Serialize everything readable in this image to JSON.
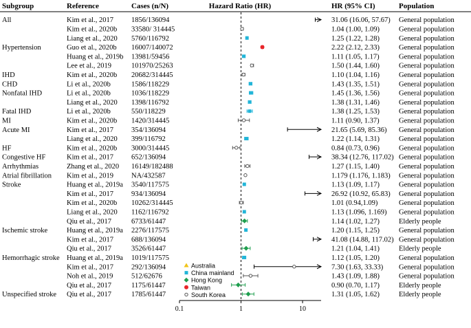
{
  "chart_data": {
    "type": "forest",
    "title": "Hazard Ratio (HR)",
    "headers": {
      "subgroup": "Subgroup",
      "reference": "Reference",
      "cases": "Cases (n/N)",
      "hr": "Hazard Ratio (HR)",
      "ci": "HR (95% CI)",
      "population": "Population"
    },
    "x_scale": "log",
    "xlim": [
      0.1,
      20
    ],
    "x_ticks": [
      {
        "value": 0.1,
        "label": "0.1"
      },
      {
        "value": 1,
        "label": "1"
      },
      {
        "value": 10,
        "label": "10"
      }
    ],
    "reference_line": 1,
    "legend": {
      "placement": "bottom-left-inside",
      "items": [
        {
          "key": "Australia",
          "label": "Australia",
          "color": "#f0c419",
          "shape": "triangle"
        },
        {
          "key": "China mainland",
          "label": "China mainland",
          "color": "#22b5d8",
          "shape": "square"
        },
        {
          "key": "Hong Kong",
          "label": "Hong Kong",
          "color": "#1e9e4e",
          "shape": "diamond"
        },
        {
          "key": "Taiwan",
          "label": "Taiwan",
          "color": "#e8262a",
          "shape": "circle"
        },
        {
          "key": "South Korea",
          "label": "South Korea",
          "color": "#555555",
          "shape": "open-circle"
        }
      ]
    },
    "rows": [
      {
        "subgroup": "All",
        "reference": "Kim et al., 2017",
        "cases": "1856/136094",
        "hr": 31.06,
        "lo": 16.06,
        "hi": 57.67,
        "ci_text": "31.06 (16.06, 57.67)",
        "population": "General population",
        "region": "South Korea",
        "arrow": true
      },
      {
        "subgroup": "",
        "reference": "Kim et al., 2020b",
        "cases": "33580/ 314445",
        "hr": 1.04,
        "lo": 1.0,
        "hi": 1.09,
        "ci_text": "1.04 (1.00, 1.09)",
        "population": "General population",
        "region": "South Korea"
      },
      {
        "subgroup": "",
        "reference": "Liang et al., 2020",
        "cases": "5760/116792",
        "hr": 1.25,
        "lo": 1.22,
        "hi": 1.28,
        "ci_text": "1.25 (1.22, 1.28)",
        "population": "General population",
        "region": "China mainland"
      },
      {
        "subgroup": "Hypertension",
        "reference": "Guo et al., 2020b",
        "cases": "16007/140072",
        "hr": 2.22,
        "lo": 2.12,
        "hi": 2.33,
        "ci_text": "2.22 (2.12, 2.33)",
        "population": "General population",
        "region": "Taiwan"
      },
      {
        "subgroup": "",
        "reference": "Huang et al., 2019b",
        "cases": "13981/59456",
        "hr": 1.11,
        "lo": 1.05,
        "hi": 1.17,
        "ci_text": "1.11 (1.05, 1.17)",
        "population": "General population",
        "region": "China mainland"
      },
      {
        "subgroup": "",
        "reference": "Lee et al., 2019",
        "cases": "101970/25263",
        "hr": 1.5,
        "lo": 1.44,
        "hi": 1.6,
        "ci_text": "1.50 (1.44, 1.60)",
        "population": "General population",
        "region": "South Korea"
      },
      {
        "subgroup": "IHD",
        "reference": "Kim et al., 2020b",
        "cases": "20682/314445",
        "hr": 1.1,
        "lo": 1.04,
        "hi": 1.16,
        "ci_text": "1.10 (1.04, 1.16)",
        "population": "General population",
        "region": "South Korea"
      },
      {
        "subgroup": "CHD",
        "reference": "Li et al., 2020b",
        "cases": "1586/118229",
        "hr": 1.43,
        "lo": 1.35,
        "hi": 1.51,
        "ci_text": "1.43 (1.35, 1.51)",
        "population": "General population",
        "region": "China mainland"
      },
      {
        "subgroup": "Nonfatal IHD",
        "reference": "Li et al., 2020b",
        "cases": "1036/118229",
        "hr": 1.45,
        "lo": 1.36,
        "hi": 1.56,
        "ci_text": "1.45 (1.36, 1.56)",
        "population": "General population",
        "region": "China mainland"
      },
      {
        "subgroup": "",
        "reference": "Liang et al., 2020",
        "cases": "1398/116792",
        "hr": 1.38,
        "lo": 1.31,
        "hi": 1.46,
        "ci_text": "1.38 (1.31, 1.46)",
        "population": "General population",
        "region": "China mainland"
      },
      {
        "subgroup": "Fatal IHD",
        "reference": "Li et al., 2020b",
        "cases": "550/118229",
        "hr": 1.38,
        "lo": 1.25,
        "hi": 1.53,
        "ci_text": "1.38 (1.25, 1.53)",
        "population": "General population",
        "region": "China mainland"
      },
      {
        "subgroup": "MI",
        "reference": "Kim et al., 2020b",
        "cases": "1420/314445",
        "hr": 1.11,
        "lo": 0.9,
        "hi": 1.37,
        "ci_text": "1.11 (0.90, 1.37)",
        "population": "General population",
        "region": "South Korea"
      },
      {
        "subgroup": "Acute MI",
        "reference": "Kim et al., 2017",
        "cases": "354/136094",
        "hr": 21.65,
        "lo": 5.69,
        "hi": 85.36,
        "ci_text": "21.65 (5.69, 85.36)",
        "population": "General population",
        "region": "South Korea",
        "arrow": true
      },
      {
        "subgroup": "",
        "reference": "Liang et al., 2020",
        "cases": "399/116792",
        "hr": 1.22,
        "lo": 1.14,
        "hi": 1.31,
        "ci_text": "1.22 (1.14, 1.31)",
        "population": "General population",
        "region": "China mainland"
      },
      {
        "subgroup": "HF",
        "reference": "Kim et al., 2020b",
        "cases": "3000/314445",
        "hr": 0.84,
        "lo": 0.73,
        "hi": 0.96,
        "ci_text": "0.84 (0.73, 0.96)",
        "population": "General population",
        "region": "South Korea"
      },
      {
        "subgroup": "Congestive HF",
        "reference": "Kim et al., 2017",
        "cases": "652/136094",
        "hr": 38.34,
        "lo": 12.76,
        "hi": 117.02,
        "ci_text": "38.34 (12.76, 117.02)",
        "population": "General population",
        "region": "South Korea",
        "arrow": true
      },
      {
        "subgroup": "Arrhythmias",
        "reference": "Zhang et al., 2020",
        "cases": "16149/182488",
        "hr": 1.27,
        "lo": 1.15,
        "hi": 1.4,
        "ci_text": "1.27 (1.15, 1.40)",
        "population": "General population",
        "region": "South Korea"
      },
      {
        "subgroup": "Atrial fibrillation",
        "reference": "Kim et al., 2019",
        "cases": "NA/432587",
        "hr": 1.179,
        "lo": 1.176,
        "hi": 1.183,
        "ci_text": "1.179 (1.176, 1.183)",
        "population": "General population",
        "region": "South Korea"
      },
      {
        "subgroup": "Stroke",
        "reference": "Huang et al., 2019a",
        "cases": "3540/117575",
        "hr": 1.13,
        "lo": 1.09,
        "hi": 1.17,
        "ci_text": "1.13 (1.09, 1.17)",
        "population": "General population",
        "region": "China mainland"
      },
      {
        "subgroup": "",
        "reference": "Kim et al., 2017",
        "cases": "934/136094",
        "hr": 26.92,
        "lo": 10.92,
        "hi": 65.83,
        "ci_text": "26.92 (10.92, 65.83)",
        "population": "General population",
        "region": "South Korea",
        "arrow": true
      },
      {
        "subgroup": "",
        "reference": "Kim et al., 2020b",
        "cases": "10262/314445",
        "hr": 1.01,
        "lo": 0.94,
        "hi": 1.09,
        "ci_text": "1.01 (0.94,1.09)",
        "population": "General population",
        "region": "South Korea"
      },
      {
        "subgroup": "",
        "reference": "Liang et al., 2020",
        "cases": "1162/116792",
        "hr": 1.13,
        "lo": 1.096,
        "hi": 1.169,
        "ci_text": "1.13  (1.096, 1.169)",
        "population": "General population",
        "region": "China mainland"
      },
      {
        "subgroup": "",
        "reference": "Qiu et al., 2017",
        "cases": "6733/61447",
        "hr": 1.14,
        "lo": 1.02,
        "hi": 1.27,
        "ci_text": "1.14 (1.02, 1.27)",
        "population": "Elderly people",
        "region": "Hong Kong"
      },
      {
        "subgroup": "Ischemic stroke",
        "reference": "Huang et al., 2019a",
        "cases": "2276/117575",
        "hr": 1.2,
        "lo": 1.15,
        "hi": 1.25,
        "ci_text": "1.20 (1.15, 1.25)",
        "population": "General population",
        "region": "China mainland"
      },
      {
        "subgroup": "",
        "reference": "Kim et al., 2017",
        "cases": "688/136094",
        "hr": 41.08,
        "lo": 14.88,
        "hi": 117.02,
        "ci_text": "41.08 (14.88, 117.02)",
        "population": "General population",
        "region": "South Korea",
        "arrow": true
      },
      {
        "subgroup": "",
        "reference": "Qiu et al., 2017",
        "cases": "3526/61447",
        "hr": 1.21,
        "lo": 1.04,
        "hi": 1.41,
        "ci_text": "1.21 (1.04, 1.41)",
        "population": "Elderly people",
        "region": "Hong Kong"
      },
      {
        "subgroup": "Hemorrhagic stroke",
        "reference": "Huang et al., 2019a",
        "cases": "1019/117575",
        "hr": 1.12,
        "lo": 1.05,
        "hi": 1.2,
        "ci_text": "1.12 (1.05, 1.20)",
        "population": "General population",
        "region": "China mainland"
      },
      {
        "subgroup": "",
        "reference": "Kim et al., 2017",
        "cases": "292/136094",
        "hr": 7.3,
        "lo": 1.63,
        "hi": 33.33,
        "ci_text": "7.30 (1.63, 33.33)",
        "population": "General population",
        "region": "South Korea",
        "arrow": true
      },
      {
        "subgroup": "",
        "reference": "Noh et al., 2019",
        "cases": "512/62676",
        "hr": 1.43,
        "lo": 1.09,
        "hi": 1.88,
        "ci_text": "1.43 (1.09, 1.88)",
        "population": "General population",
        "region": "South Korea"
      },
      {
        "subgroup": "",
        "reference": "Qiu et al., 2017",
        "cases": "1175/61447",
        "hr": 0.9,
        "lo": 0.7,
        "hi": 1.17,
        "ci_text": "0.90 (0.70, 1.17)",
        "population": "Elderly people",
        "region": "Hong Kong"
      },
      {
        "subgroup": "Unspecified stroke",
        "reference": "Qiu et al., 2017",
        "cases": "1785/61447",
        "hr": 1.31,
        "lo": 1.05,
        "hi": 1.62,
        "ci_text": "1.31 (1.05, 1.62)",
        "population": "Elderly people",
        "region": "Hong Kong"
      }
    ]
  }
}
